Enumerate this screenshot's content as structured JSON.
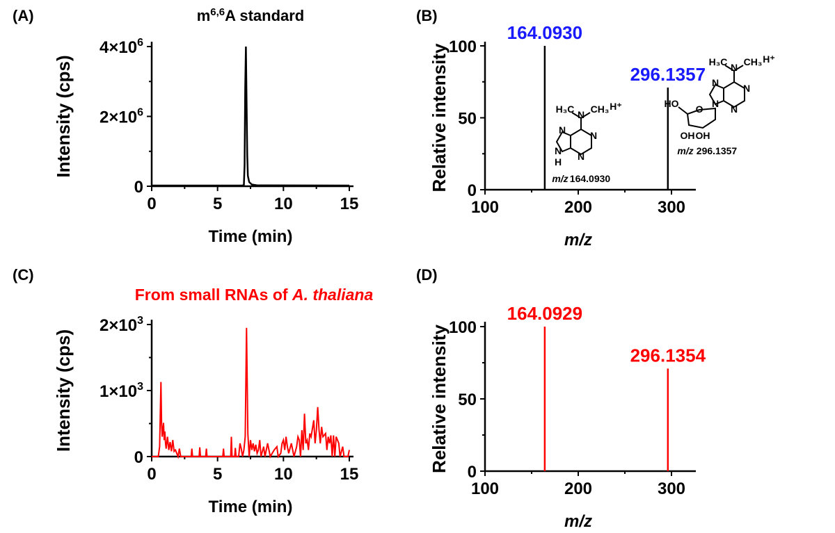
{
  "chart_data": [
    {
      "panel": "(A)",
      "type": "line",
      "title": "m6,6A standard",
      "title_main": "m",
      "title_sup": "6,6",
      "title_rest": "A standard",
      "xlabel": "Time (min)",
      "ylabel": "Intensity (cps)",
      "xlim": [
        0,
        15
      ],
      "ylim": [
        0,
        4000000
      ],
      "xticks": [
        "0",
        "5",
        "10",
        "15"
      ],
      "yticks": [
        {
          "v": 0,
          "label": "0"
        },
        {
          "v": 2000000,
          "label": "2×10",
          "sup": "6"
        },
        {
          "v": 4000000,
          "label": "4×10",
          "sup": "6"
        }
      ],
      "color": "#000000",
      "x": [
        0,
        6.9,
        7.0,
        7.05,
        7.1,
        7.15,
        7.2,
        7.25,
        7.3,
        7.4,
        7.6,
        8,
        15
      ],
      "y": [
        20000,
        20000,
        40000,
        600000,
        2800000,
        4000000,
        2500000,
        900000,
        300000,
        120000,
        50000,
        25000,
        20000
      ]
    },
    {
      "panel": "(B)",
      "type": "bar",
      "xlabel": "m/z",
      "ylabel": "Relative intensity",
      "xlim": [
        100,
        320
      ],
      "ylim": [
        0,
        100
      ],
      "xticks": [
        "100",
        "200",
        "300"
      ],
      "yticks": [
        "0",
        "50",
        "100"
      ],
      "color": "#000000",
      "label_color": "#1a1aff",
      "peaks": [
        {
          "mz": 164.093,
          "value": 100,
          "label": "164.0930"
        },
        {
          "mz": 296.1357,
          "value": 71,
          "label": "296.1357"
        }
      ],
      "structures": [
        {
          "name": "N6,N6-dimethyladenine",
          "caption_italic": "m/z",
          "caption_value": "164.0930",
          "charge": "H+"
        },
        {
          "name": "N6,N6-dimethyladenosine",
          "caption_italic": "m/z",
          "caption_value": "296.1357",
          "charge": "H+"
        }
      ]
    },
    {
      "panel": "(C)",
      "type": "line",
      "title": "From small RNAs of ",
      "title_italic": "A. thaliana",
      "xlabel": "Time (min)",
      "ylabel": "Intensity (cps)",
      "xlim": [
        0,
        15
      ],
      "ylim": [
        0,
        2000
      ],
      "xticks": [
        "0",
        "5",
        "10",
        "15"
      ],
      "yticks": [
        {
          "v": 0,
          "label": "0"
        },
        {
          "v": 1000,
          "label": "1×10",
          "sup": "3"
        },
        {
          "v": 2000,
          "label": "2×10",
          "sup": "3"
        }
      ],
      "color": "#ff0000",
      "x": [
        0,
        0.5,
        0.6,
        0.7,
        0.75,
        0.8,
        0.9,
        0.95,
        1.0,
        1.05,
        1.1,
        1.2,
        1.3,
        1.4,
        1.5,
        1.6,
        1.7,
        1.8,
        2.0,
        2.1,
        2.2,
        2.3,
        3.0,
        3.05,
        3.1,
        3.6,
        3.65,
        3.7,
        4.1,
        4.15,
        4.2,
        5.4,
        5.45,
        5.5,
        6.0,
        6.05,
        6.1,
        6.3,
        6.35,
        6.4,
        6.6,
        6.7,
        6.8,
        6.9,
        7.0,
        7.1,
        7.2,
        7.3,
        7.4,
        7.5,
        7.6,
        7.7,
        7.8,
        7.9,
        8.0,
        8.1,
        8.2,
        8.3,
        8.5,
        8.6,
        8.8,
        8.9,
        9.0,
        9.3,
        9.5,
        9.6,
        9.8,
        9.9,
        10.0,
        10.1,
        10.2,
        10.3,
        10.4,
        10.6,
        10.8,
        11.0,
        11.1,
        11.2,
        11.3,
        11.4,
        11.5,
        11.6,
        11.7,
        11.8,
        11.9,
        12.0,
        12.1,
        12.3,
        12.4,
        12.5,
        12.6,
        12.7,
        12.8,
        12.9,
        13.0,
        13.2,
        13.3,
        13.4,
        13.5,
        13.6,
        13.7,
        13.8,
        13.9,
        14.0,
        14.2,
        14.3,
        14.5,
        14.6,
        14.8,
        14.9,
        15.0
      ],
      "y": [
        0,
        0,
        150,
        1130,
        500,
        300,
        510,
        250,
        380,
        200,
        120,
        300,
        100,
        220,
        80,
        250,
        80,
        100,
        0,
        120,
        0,
        0,
        0,
        120,
        0,
        0,
        140,
        0,
        0,
        120,
        0,
        0,
        120,
        0,
        0,
        300,
        0,
        0,
        130,
        0,
        0,
        200,
        120,
        0,
        100,
        300,
        1950,
        350,
        0,
        250,
        100,
        200,
        80,
        180,
        50,
        100,
        250,
        0,
        150,
        0,
        200,
        100,
        0,
        100,
        150,
        0,
        50,
        200,
        250,
        100,
        300,
        150,
        50,
        200,
        0,
        150,
        300,
        250,
        0,
        400,
        100,
        650,
        200,
        250,
        100,
        350,
        300,
        550,
        200,
        400,
        750,
        400,
        200,
        450,
        300,
        350,
        100,
        300,
        200,
        320,
        0,
        320,
        0,
        300,
        200,
        0,
        150,
        0,
        0,
        0,
        100
      ],
      "note": "approximate noisy trace"
    },
    {
      "panel": "(D)",
      "type": "bar",
      "xlabel": "m/z",
      "ylabel": "Relative intensity",
      "xlim": [
        100,
        320
      ],
      "ylim": [
        0,
        100
      ],
      "xticks": [
        "100",
        "200",
        "300"
      ],
      "yticks": [
        "0",
        "50",
        "100"
      ],
      "color": "#ff0000",
      "label_color": "#ff0000",
      "peaks": [
        {
          "mz": 164.0929,
          "value": 100,
          "label": "164.0929"
        },
        {
          "mz": 296.1354,
          "value": 71,
          "label": "296.1354"
        }
      ]
    }
  ]
}
